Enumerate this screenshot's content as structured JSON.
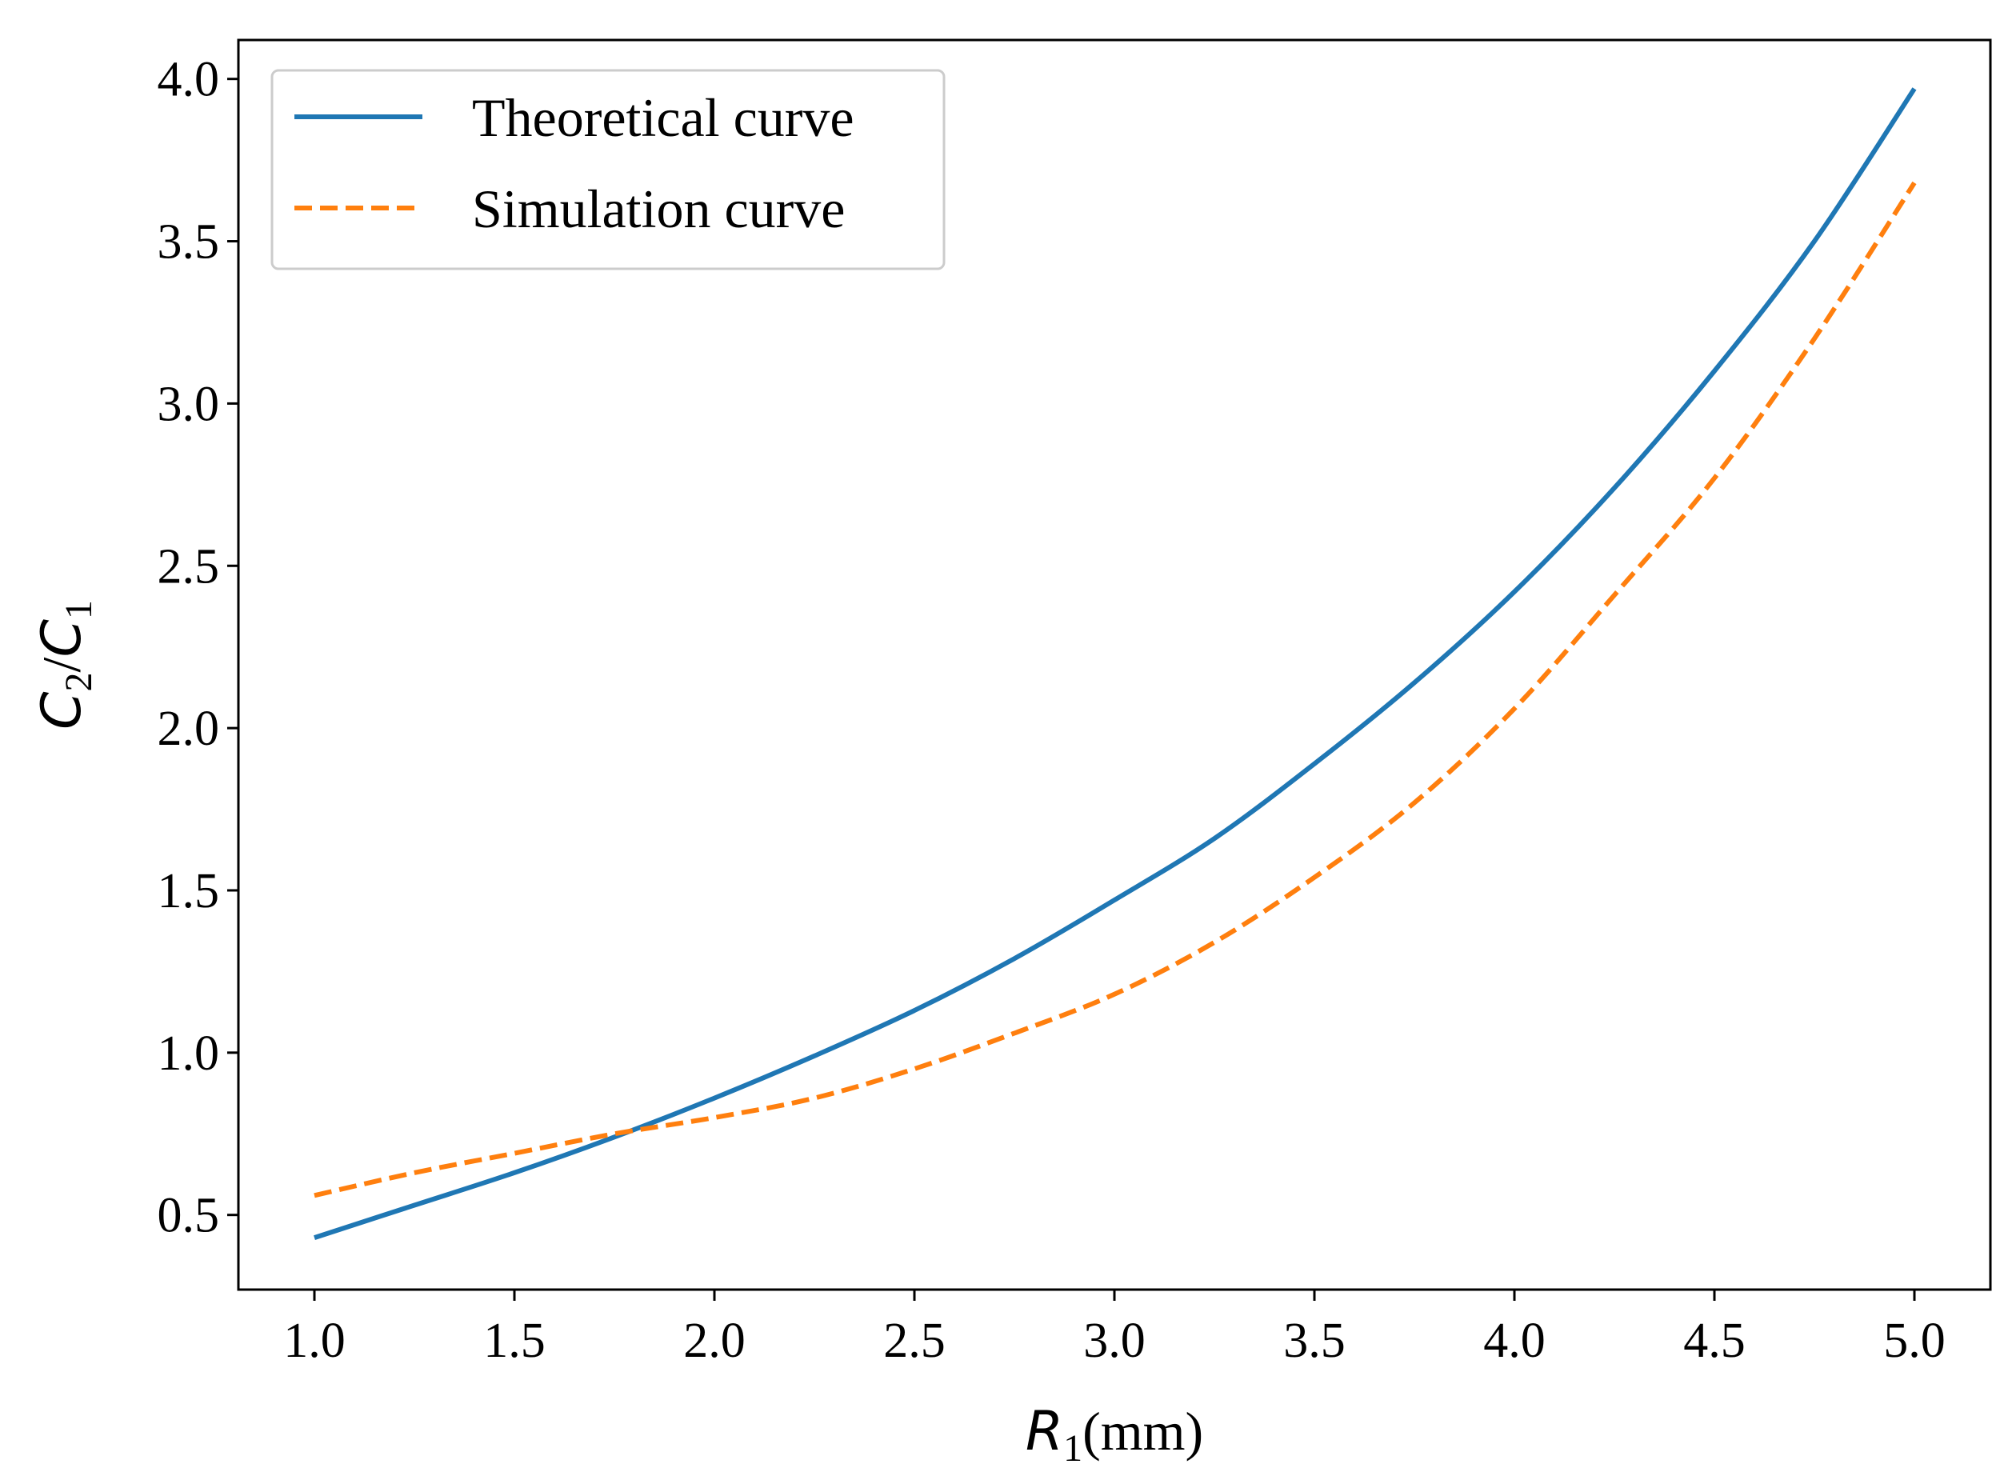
{
  "chart_data": {
    "type": "line",
    "title": "",
    "xlabel": {
      "symbol": "R",
      "subscript": "1",
      "unit": "(mm)"
    },
    "ylabel": {
      "num_symbol": "C",
      "num_sub": "2",
      "den_symbol": "C",
      "den_sub": "1"
    },
    "xlim": [
      0.81,
      5.19
    ],
    "ylim": [
      0.27,
      4.12
    ],
    "xticks": [
      1.0,
      1.5,
      2.0,
      2.5,
      3.0,
      3.5,
      4.0,
      4.5,
      5.0
    ],
    "xtick_labels": [
      "1.0",
      "1.5",
      "2.0",
      "2.5",
      "3.0",
      "3.5",
      "4.0",
      "4.5",
      "5.0"
    ],
    "yticks": [
      0.5,
      1.0,
      1.5,
      2.0,
      2.5,
      3.0,
      3.5,
      4.0
    ],
    "ytick_labels": [
      "0.5",
      "1.0",
      "1.5",
      "2.0",
      "2.5",
      "3.0",
      "3.5",
      "4.0"
    ],
    "grid": false,
    "legend_position": "top-left",
    "series": [
      {
        "name": "Theoretical curve",
        "color": "#1f77b4",
        "style": "solid",
        "x": [
          1.0,
          1.25,
          1.5,
          1.75,
          2.0,
          2.25,
          2.5,
          2.75,
          3.0,
          3.25,
          3.5,
          3.75,
          4.0,
          4.25,
          4.5,
          4.75,
          5.0
        ],
        "y": [
          0.43,
          0.53,
          0.63,
          0.74,
          0.86,
          0.99,
          1.13,
          1.29,
          1.47,
          1.66,
          1.89,
          2.14,
          2.42,
          2.74,
          3.1,
          3.5,
          3.97
        ]
      },
      {
        "name": "Simulation curve",
        "color": "#ff7f0e",
        "style": "dashed",
        "x": [
          1.0,
          1.25,
          1.5,
          1.75,
          2.0,
          2.25,
          2.5,
          2.75,
          3.0,
          3.25,
          3.5,
          3.75,
          4.0,
          4.25,
          4.5,
          4.75,
          5.0
        ],
        "y": [
          0.56,
          0.63,
          0.69,
          0.75,
          0.8,
          0.86,
          0.95,
          1.06,
          1.18,
          1.34,
          1.54,
          1.77,
          2.06,
          2.41,
          2.77,
          3.2,
          3.68
        ]
      }
    ]
  }
}
